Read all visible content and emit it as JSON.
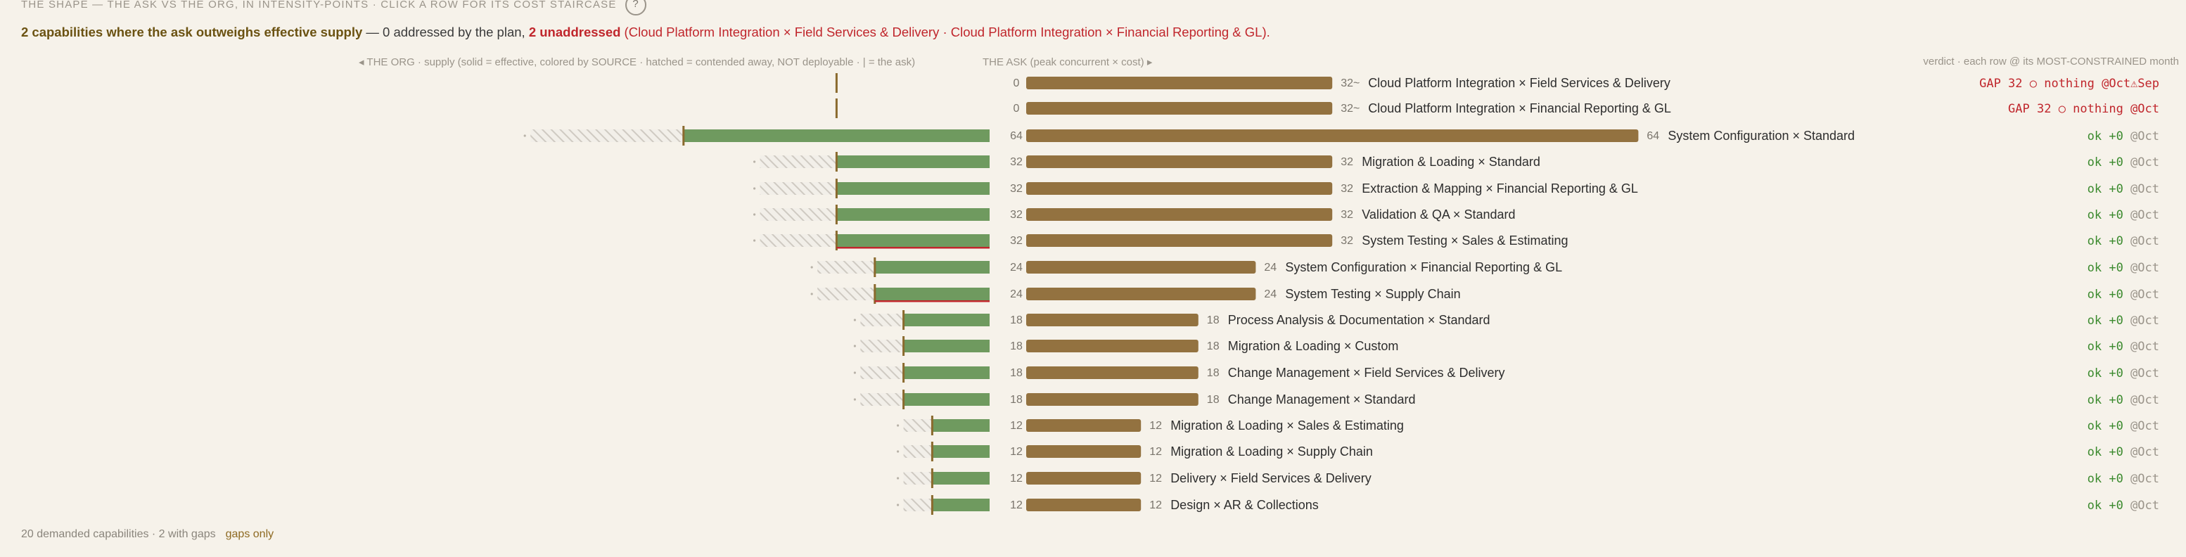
{
  "header": {
    "title": "THE SHAPE — THE ASK VS THE ORG, IN INTENSITY-POINTS · CLICK A ROW FOR ITS COST STAIRCASE",
    "help": "?"
  },
  "summary": {
    "lead": "2 capabilities where the ask outweighs effective supply",
    "mid": " — 0 addressed by the plan, ",
    "unaddressed": "2 unaddressed",
    "detail": "(Cloud Platform Integration × Field Services & Delivery · Cloud Platform Integration × Financial Reporting & GL)",
    "end": "."
  },
  "columns": {
    "org": "◂ THE ORG · supply (solid = effective, colored by SOURCE · hatched = contended away, NOT deployable · | = the ask)",
    "ask": "THE ASK (peak concurrent × cost) ▸",
    "verdict": "verdict · each row @ its MOST-CONSTRAINED month"
  },
  "colors": {
    "supply": "#6f9a5f",
    "ask": "#937240",
    "askMark": "#8a6a2e",
    "gap": "#c0262c",
    "ok": "#3b8a2e",
    "muted": "#9a948a"
  },
  "chart_data": {
    "type": "bar",
    "rows": [
      {
        "name": "Cloud Platform Integration × Field Services & Delivery",
        "ask": 32,
        "supply": 0,
        "contended": 0,
        "supply_label": "0",
        "ask_label": "32~",
        "verdict": "GAP 32",
        "verdict_detail": "○ nothing",
        "month": "@Oct⚠Sep",
        "status": "gap"
      },
      {
        "name": "Cloud Platform Integration × Financial Reporting & GL",
        "ask": 32,
        "supply": 0,
        "contended": 0,
        "supply_label": "0",
        "ask_label": "32~",
        "verdict": "GAP 32",
        "verdict_detail": "○ nothing",
        "month": "@Oct",
        "status": "gap"
      },
      {
        "name": "System Configuration × Standard",
        "ask": 64,
        "supply": 64,
        "contended": 32,
        "supply_label": "64",
        "ask_label": "64",
        "verdict": "ok +0",
        "verdict_detail": "",
        "month": "@Oct",
        "status": "ok"
      },
      {
        "name": "Migration & Loading × Standard",
        "ask": 32,
        "supply": 32,
        "contended": 16,
        "supply_label": "32",
        "ask_label": "32",
        "verdict": "ok +0",
        "verdict_detail": "",
        "month": "@Oct",
        "status": "ok"
      },
      {
        "name": "Extraction & Mapping × Financial Reporting & GL",
        "ask": 32,
        "supply": 32,
        "contended": 16,
        "supply_label": "32",
        "ask_label": "32",
        "verdict": "ok +0",
        "verdict_detail": "",
        "month": "@Oct",
        "status": "ok"
      },
      {
        "name": "Validation & QA × Standard",
        "ask": 32,
        "supply": 32,
        "contended": 16,
        "supply_label": "32",
        "ask_label": "32",
        "verdict": "ok +0",
        "verdict_detail": "",
        "month": "@Oct",
        "status": "ok"
      },
      {
        "name": "System Testing × Sales & Estimating",
        "ask": 32,
        "supply": 32,
        "contended": 16,
        "supply_label": "32",
        "ask_label": "32",
        "verdict": "ok +0",
        "verdict_detail": "",
        "month": "@Oct",
        "status": "ok",
        "underline": true
      },
      {
        "name": "System Configuration × Financial Reporting & GL",
        "ask": 24,
        "supply": 24,
        "contended": 12,
        "supply_label": "24",
        "ask_label": "24",
        "verdict": "ok +0",
        "verdict_detail": "",
        "month": "@Oct",
        "status": "ok"
      },
      {
        "name": "System Testing × Supply Chain",
        "ask": 24,
        "supply": 24,
        "contended": 12,
        "supply_label": "24",
        "ask_label": "24",
        "verdict": "ok +0",
        "verdict_detail": "",
        "month": "@Oct",
        "status": "ok",
        "underline": true
      },
      {
        "name": "Process Analysis & Documentation × Standard",
        "ask": 18,
        "supply": 18,
        "contended": 9,
        "supply_label": "18",
        "ask_label": "18",
        "verdict": "ok +0",
        "verdict_detail": "",
        "month": "@Oct",
        "status": "ok"
      },
      {
        "name": "Migration & Loading × Custom",
        "ask": 18,
        "supply": 18,
        "contended": 9,
        "supply_label": "18",
        "ask_label": "18",
        "verdict": "ok +0",
        "verdict_detail": "",
        "month": "@Oct",
        "status": "ok"
      },
      {
        "name": "Change Management × Field Services & Delivery",
        "ask": 18,
        "supply": 18,
        "contended": 9,
        "supply_label": "18",
        "ask_label": "18",
        "verdict": "ok +0",
        "verdict_detail": "",
        "month": "@Oct",
        "status": "ok"
      },
      {
        "name": "Change Management × Standard",
        "ask": 18,
        "supply": 18,
        "contended": 9,
        "supply_label": "18",
        "ask_label": "18",
        "verdict": "ok +0",
        "verdict_detail": "",
        "month": "@Oct",
        "status": "ok"
      },
      {
        "name": "Migration & Loading × Sales & Estimating",
        "ask": 12,
        "supply": 12,
        "contended": 6,
        "supply_label": "12",
        "ask_label": "12",
        "verdict": "ok +0",
        "verdict_detail": "",
        "month": "@Oct",
        "status": "ok"
      },
      {
        "name": "Migration & Loading × Supply Chain",
        "ask": 12,
        "supply": 12,
        "contended": 6,
        "supply_label": "12",
        "ask_label": "12",
        "verdict": "ok +0",
        "verdict_detail": "",
        "month": "@Oct",
        "status": "ok"
      },
      {
        "name": "Delivery × Field Services & Delivery",
        "ask": 12,
        "supply": 12,
        "contended": 6,
        "supply_label": "12",
        "ask_label": "12",
        "verdict": "ok +0",
        "verdict_detail": "",
        "month": "@Oct",
        "status": "ok"
      },
      {
        "name": "Design × AR & Collections",
        "ask": 12,
        "supply": 12,
        "contended": 6,
        "supply_label": "12",
        "ask_label": "12",
        "verdict": "ok +0",
        "verdict_detail": "",
        "month": "@Oct",
        "status": "ok"
      }
    ]
  },
  "footer": {
    "count": "20 demanded capabilities · 2 with gaps",
    "filter": "gaps only"
  }
}
